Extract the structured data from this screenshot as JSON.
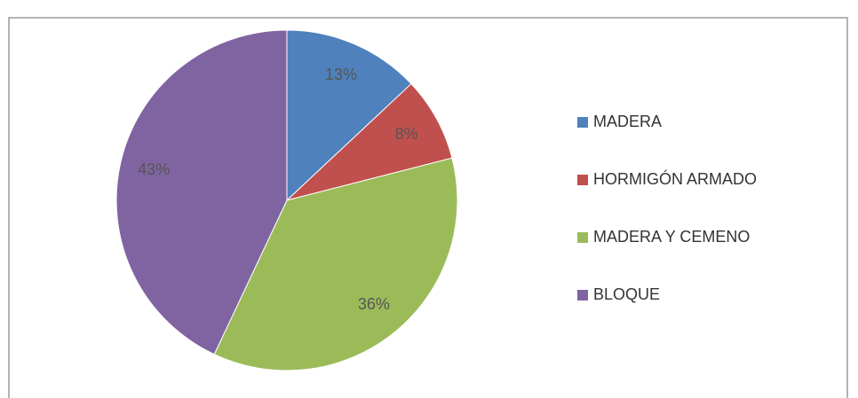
{
  "chart_data": {
    "type": "pie",
    "categories": [
      "MADERA",
      "HORMIGÓN ARMADO",
      "MADERA Y CEMENO",
      "BLOQUE"
    ],
    "values": [
      13,
      8,
      36,
      43
    ],
    "value_labels": [
      "13%",
      "8%",
      "36%",
      "43%"
    ],
    "colors": [
      "#4f81bd",
      "#c0504d",
      "#9bbb59",
      "#8064a2"
    ],
    "legend": "right"
  }
}
